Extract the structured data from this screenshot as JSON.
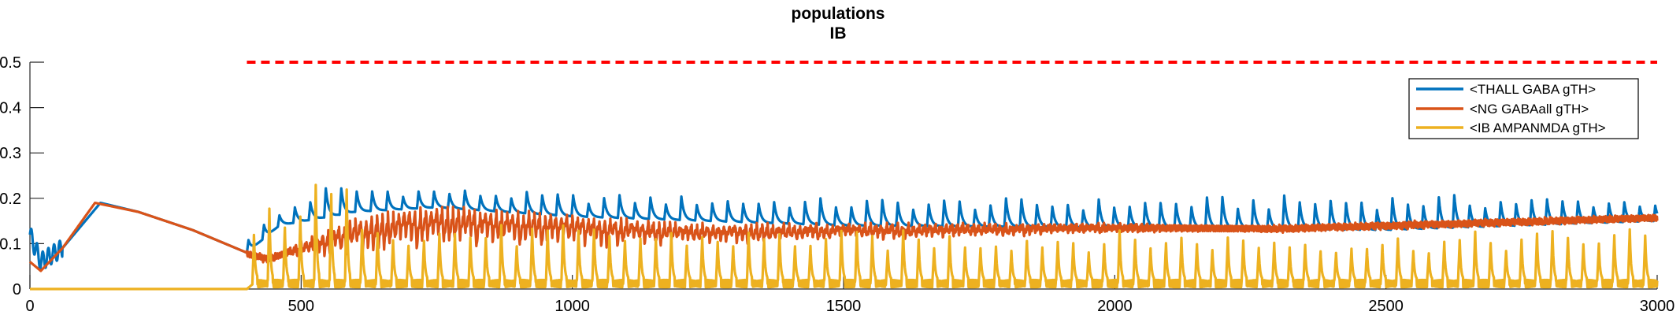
{
  "chart_data": {
    "type": "line",
    "title": "populations",
    "subtitle": "IB",
    "xlabel": "",
    "ylabel": "",
    "xlim": [
      0,
      3000
    ],
    "ylim": [
      0,
      0.5
    ],
    "x_ticks": [
      0,
      500,
      1000,
      1500,
      2000,
      2500,
      3000
    ],
    "y_ticks": [
      0,
      0.1,
      0.2,
      0.3,
      0.4,
      0.5
    ],
    "x_tick_labels": [
      "0",
      "500",
      "1000",
      "1500",
      "2000",
      "2500",
      "3000"
    ],
    "y_tick_labels": [
      "0",
      "0.1",
      "0.2",
      "0.3",
      "0.4",
      "0.5"
    ],
    "grid": false,
    "legend_position": "top-right",
    "reference_line": {
      "style": "dashed",
      "color": "#ff0000",
      "y": 0.5,
      "x": [
        400,
        3000
      ]
    },
    "series": [
      {
        "name": "<THALL GABA gTH>",
        "color": "#0072bd",
        "base": [
          [
            0,
            0.12
          ],
          [
            20,
            0.06
          ],
          [
            60,
            0.09
          ],
          [
            130,
            0.19
          ],
          [
            200,
            0.17
          ],
          [
            300,
            0.13
          ],
          [
            400,
            0.08
          ],
          [
            460,
            0.14
          ],
          [
            600,
            0.17
          ],
          [
            750,
            0.18
          ],
          [
            1000,
            0.16
          ],
          [
            1500,
            0.14
          ],
          [
            2000,
            0.135
          ],
          [
            2500,
            0.13
          ],
          [
            3000,
            0.15
          ]
        ],
        "peak": [
          [
            0,
            0.12
          ],
          [
            130,
            0.2
          ],
          [
            300,
            0.14
          ],
          [
            400,
            0.12
          ],
          [
            500,
            0.2
          ],
          [
            550,
            0.23
          ],
          [
            800,
            0.22
          ],
          [
            1000,
            0.21
          ],
          [
            1500,
            0.2
          ],
          [
            2000,
            0.2
          ],
          [
            2500,
            0.21
          ],
          [
            3000,
            0.2
          ]
        ],
        "spikes_from": 400,
        "period": 28.5
      },
      {
        "name": "<NG GABAall gTH>",
        "color": "#d95319",
        "base": [
          [
            0,
            0.06
          ],
          [
            20,
            0.04
          ],
          [
            60,
            0.09
          ],
          [
            120,
            0.19
          ],
          [
            200,
            0.17
          ],
          [
            300,
            0.13
          ],
          [
            400,
            0.08
          ],
          [
            440,
            0.06
          ],
          [
            500,
            0.1
          ],
          [
            600,
            0.15
          ],
          [
            700,
            0.175
          ],
          [
            800,
            0.175
          ],
          [
            1000,
            0.16
          ],
          [
            1200,
            0.14
          ],
          [
            1500,
            0.14
          ],
          [
            2000,
            0.14
          ],
          [
            2300,
            0.13
          ],
          [
            2600,
            0.14
          ],
          [
            3000,
            0.155
          ]
        ],
        "peak": [
          [
            0,
            0.06
          ],
          [
            3000,
            0.16
          ]
        ],
        "spikes_from": 400,
        "period": 10
      },
      {
        "name": "<IB AMPANMDA gTH>",
        "color": "#edb120",
        "base": [
          [
            0,
            0
          ],
          [
            400,
            0
          ],
          [
            420,
            0.02
          ],
          [
            3000,
            0.02
          ]
        ],
        "peak": [
          [
            0,
            0
          ],
          [
            400,
            0
          ],
          [
            420,
            0.19
          ],
          [
            550,
            0.25
          ],
          [
            700,
            0.15
          ],
          [
            1000,
            0.14
          ],
          [
            1500,
            0.13
          ],
          [
            2000,
            0.13
          ],
          [
            2500,
            0.12
          ],
          [
            3000,
            0.14
          ]
        ],
        "spikes_from": 410,
        "period": 28.5
      }
    ]
  }
}
